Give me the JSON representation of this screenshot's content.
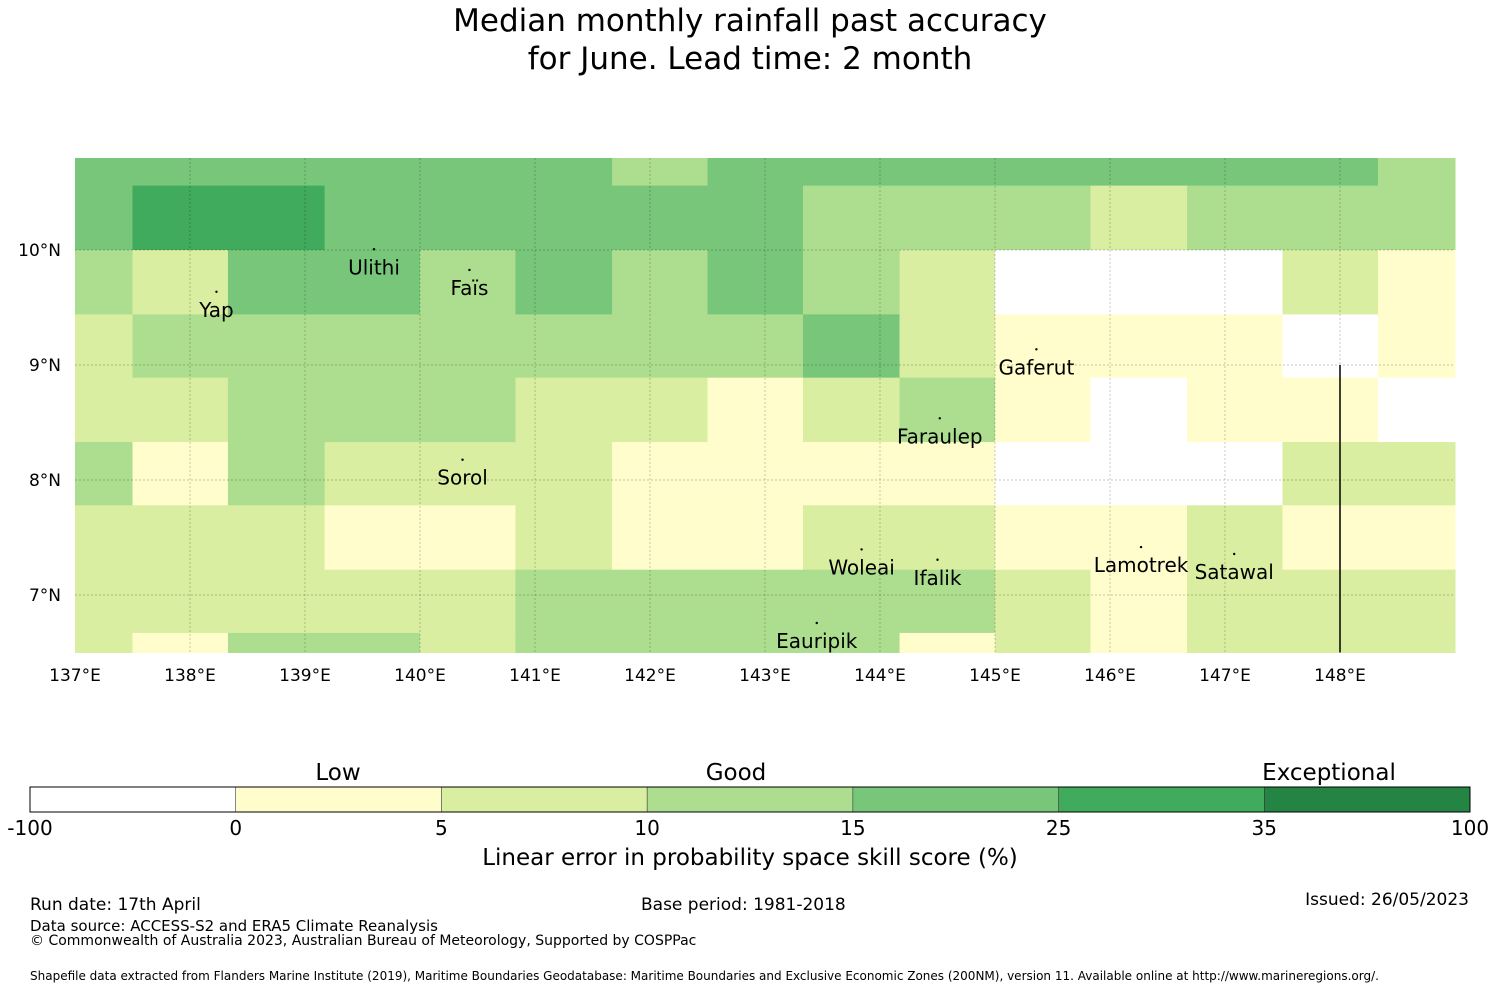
{
  "title": {
    "line1": "Median monthly rainfall past accuracy",
    "line2": "for June. Lead time: 2 month"
  },
  "map": {
    "lon_labels": [
      "137°E",
      "138°E",
      "139°E",
      "140°E",
      "141°E",
      "142°E",
      "143°E",
      "144°E",
      "145°E",
      "146°E",
      "147°E",
      "148°E"
    ],
    "lat_labels": [
      "10°N",
      "9°N",
      "8°N",
      "7°N"
    ],
    "col_edges_lon": [
      137.0,
      137.5,
      138.33,
      139.17,
      140.0,
      140.83,
      141.67,
      142.5,
      143.33,
      144.17,
      145.0,
      145.83,
      146.67,
      147.5,
      148.33,
      149.0
    ],
    "row_edges_lat": [
      10.8,
      10.56,
      10.0,
      9.44,
      8.89,
      8.33,
      7.78,
      7.22,
      6.67,
      6.5
    ],
    "grid_categories": [
      [
        4,
        4,
        4,
        4,
        4,
        4,
        3,
        4,
        4,
        4,
        4,
        4,
        4,
        4,
        3
      ],
      [
        4,
        5,
        5,
        4,
        4,
        4,
        4,
        4,
        3,
        3,
        3,
        2,
        3,
        3,
        3
      ],
      [
        3,
        2,
        4,
        4,
        3,
        4,
        3,
        4,
        3,
        2,
        0,
        0,
        0,
        2,
        1
      ],
      [
        2,
        3,
        3,
        3,
        3,
        3,
        3,
        3,
        4,
        2,
        1,
        1,
        1,
        0,
        1
      ],
      [
        2,
        2,
        3,
        3,
        3,
        2,
        2,
        1,
        2,
        3,
        1,
        0,
        1,
        1,
        0
      ],
      [
        3,
        1,
        3,
        2,
        2,
        2,
        1,
        1,
        1,
        1,
        0,
        0,
        0,
        2,
        2
      ],
      [
        2,
        2,
        2,
        1,
        1,
        2,
        1,
        1,
        2,
        2,
        1,
        1,
        2,
        1,
        1
      ],
      [
        2,
        2,
        2,
        2,
        2,
        3,
        3,
        3,
        3,
        3,
        2,
        1,
        2,
        2,
        2
      ],
      [
        2,
        1,
        3,
        3,
        2,
        3,
        3,
        3,
        3,
        1,
        2,
        1,
        2,
        2,
        2
      ]
    ],
    "places": [
      {
        "name": "Yap",
        "lon": 138.23,
        "lat": 9.48
      },
      {
        "name": "Ulithi",
        "lon": 139.6,
        "lat": 9.85
      },
      {
        "name": "Faïs",
        "lon": 140.43,
        "lat": 9.67
      },
      {
        "name": "Gaferut",
        "lon": 145.36,
        "lat": 8.98
      },
      {
        "name": "Faraulep",
        "lon": 144.52,
        "lat": 8.38
      },
      {
        "name": "Sorol",
        "lon": 140.37,
        "lat": 8.02
      },
      {
        "name": "Woleai",
        "lon": 143.84,
        "lat": 7.24
      },
      {
        "name": "Ifalik",
        "lon": 144.5,
        "lat": 7.15
      },
      {
        "name": "Lamotrek",
        "lon": 146.27,
        "lat": 7.26
      },
      {
        "name": "Satawal",
        "lon": 147.08,
        "lat": 7.2
      },
      {
        "name": "Eauripik",
        "lon": 143.45,
        "lat": 6.6
      }
    ],
    "boundary_line": {
      "lon": 148.0,
      "lat_from": 9.0,
      "lat_to": 6.5
    }
  },
  "colorbar": {
    "categories": [
      "Low",
      "Good",
      "Exceptional"
    ],
    "bins": [
      {
        "from": "-100",
        "to": "0",
        "color": "#ffffff"
      },
      {
        "from": "0",
        "to": "5",
        "color": "#fffdcc"
      },
      {
        "from": "5",
        "to": "10",
        "color": "#d9eea0"
      },
      {
        "from": "10",
        "to": "15",
        "color": "#addd8e"
      },
      {
        "from": "15",
        "to": "25",
        "color": "#78c679"
      },
      {
        "from": "25",
        "to": "35",
        "color": "#41ab5d"
      },
      {
        "from": "35",
        "to": "100",
        "color": "#238443"
      }
    ],
    "tick_labels": [
      "-100",
      "0",
      "5",
      "10",
      "15",
      "25",
      "35",
      "100"
    ],
    "label": "Linear error in probability space skill score (%)"
  },
  "footer": {
    "run_date": "Run date: 17th April",
    "base_period": "Base period: 1981-2018",
    "issued": "Issued: 26/05/2023",
    "data_source": "Data source: ACCESS-S2 and ERA5 Climate Reanalysis",
    "copyright": "© Commonwealth of Australia 2023, Australian Bureau of Meteorology, Supported by COSPPac",
    "shapefile": "Shapefile data extracted from Flanders Marine Institute (2019), Maritime Boundaries Geodatabase: Maritime Boundaries and Exclusive Economic Zones (200NM), version 11. Available online at http://www.marineregions.org/."
  }
}
